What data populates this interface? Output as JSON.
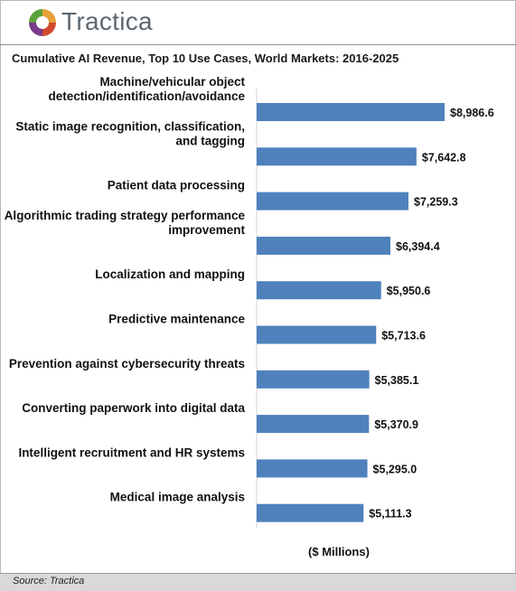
{
  "brand": {
    "name": "Tractica"
  },
  "chart_data": {
    "type": "bar",
    "orientation": "horizontal",
    "title": "Cumulative AI Revenue, Top 10 Use Cases, World Markets: 2016-2025",
    "xlabel": "($ Millions)",
    "categories": [
      [
        "Machine/vehicular object",
        "detection/identification/avoidance"
      ],
      [
        "Static image recognition, classification,",
        "and tagging"
      ],
      [
        "Patient data processing"
      ],
      [
        "Algorithmic trading strategy performance",
        "improvement"
      ],
      [
        "Localization and mapping"
      ],
      [
        "Predictive maintenance"
      ],
      [
        "Prevention against cybersecurity threats"
      ],
      [
        "Converting paperwork into digital data"
      ],
      [
        "Intelligent recruitment and HR systems"
      ],
      [
        "Medical image analysis"
      ]
    ],
    "values": [
      8986.6,
      7642.8,
      7259.3,
      6394.4,
      5950.6,
      5713.6,
      5385.1,
      5370.9,
      5295.0,
      5111.3
    ],
    "value_labels": [
      "$8,986.6",
      "$7,642.8",
      "$7,259.3",
      "$6,394.4",
      "$5,950.6",
      "$5,713.6",
      "$5,385.1",
      "$5,370.9",
      "$5,295.0",
      "$5,111.3"
    ],
    "xlim": [
      0,
      8986.6
    ],
    "bar_color": "#4f81bd",
    "grid": false,
    "legend": "none"
  },
  "source": "Source: Tractica"
}
